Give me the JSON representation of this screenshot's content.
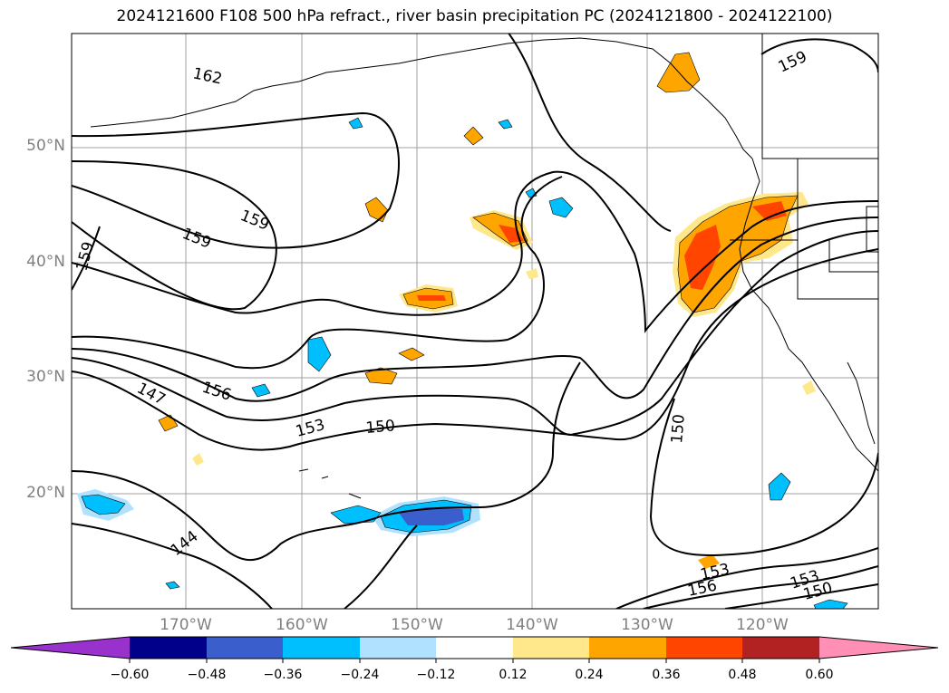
{
  "title": "2024121600 F108 500 hPa refract., river basin precipitation PC (2024121800 - 2024122100)",
  "map": {
    "lat_labels": [
      "50°N",
      "40°N",
      "30°N",
      "20°N"
    ],
    "lon_labels": [
      "170°W",
      "160°W",
      "150°W",
      "140°W",
      "130°W",
      "120°W"
    ],
    "contour_labels": [
      "162",
      "159",
      "159",
      "159",
      "159",
      "156",
      "153",
      "150",
      "147",
      "150",
      "144",
      "153",
      "156",
      "153",
      "150"
    ]
  },
  "colorbar": {
    "ticks": [
      "−0.60",
      "−0.48",
      "−0.36",
      "−0.24",
      "−0.12",
      "0.12",
      "0.24",
      "0.36",
      "0.48",
      "0.60"
    ],
    "colors": [
      "#9932cc",
      "#00008b",
      "#3a5fcd",
      "#00bfff",
      "#b0e2ff",
      "#ffffff",
      "#ffe88c",
      "#ffa500",
      "#ff4500",
      "#b22222",
      "#ff8fb4"
    ]
  }
}
